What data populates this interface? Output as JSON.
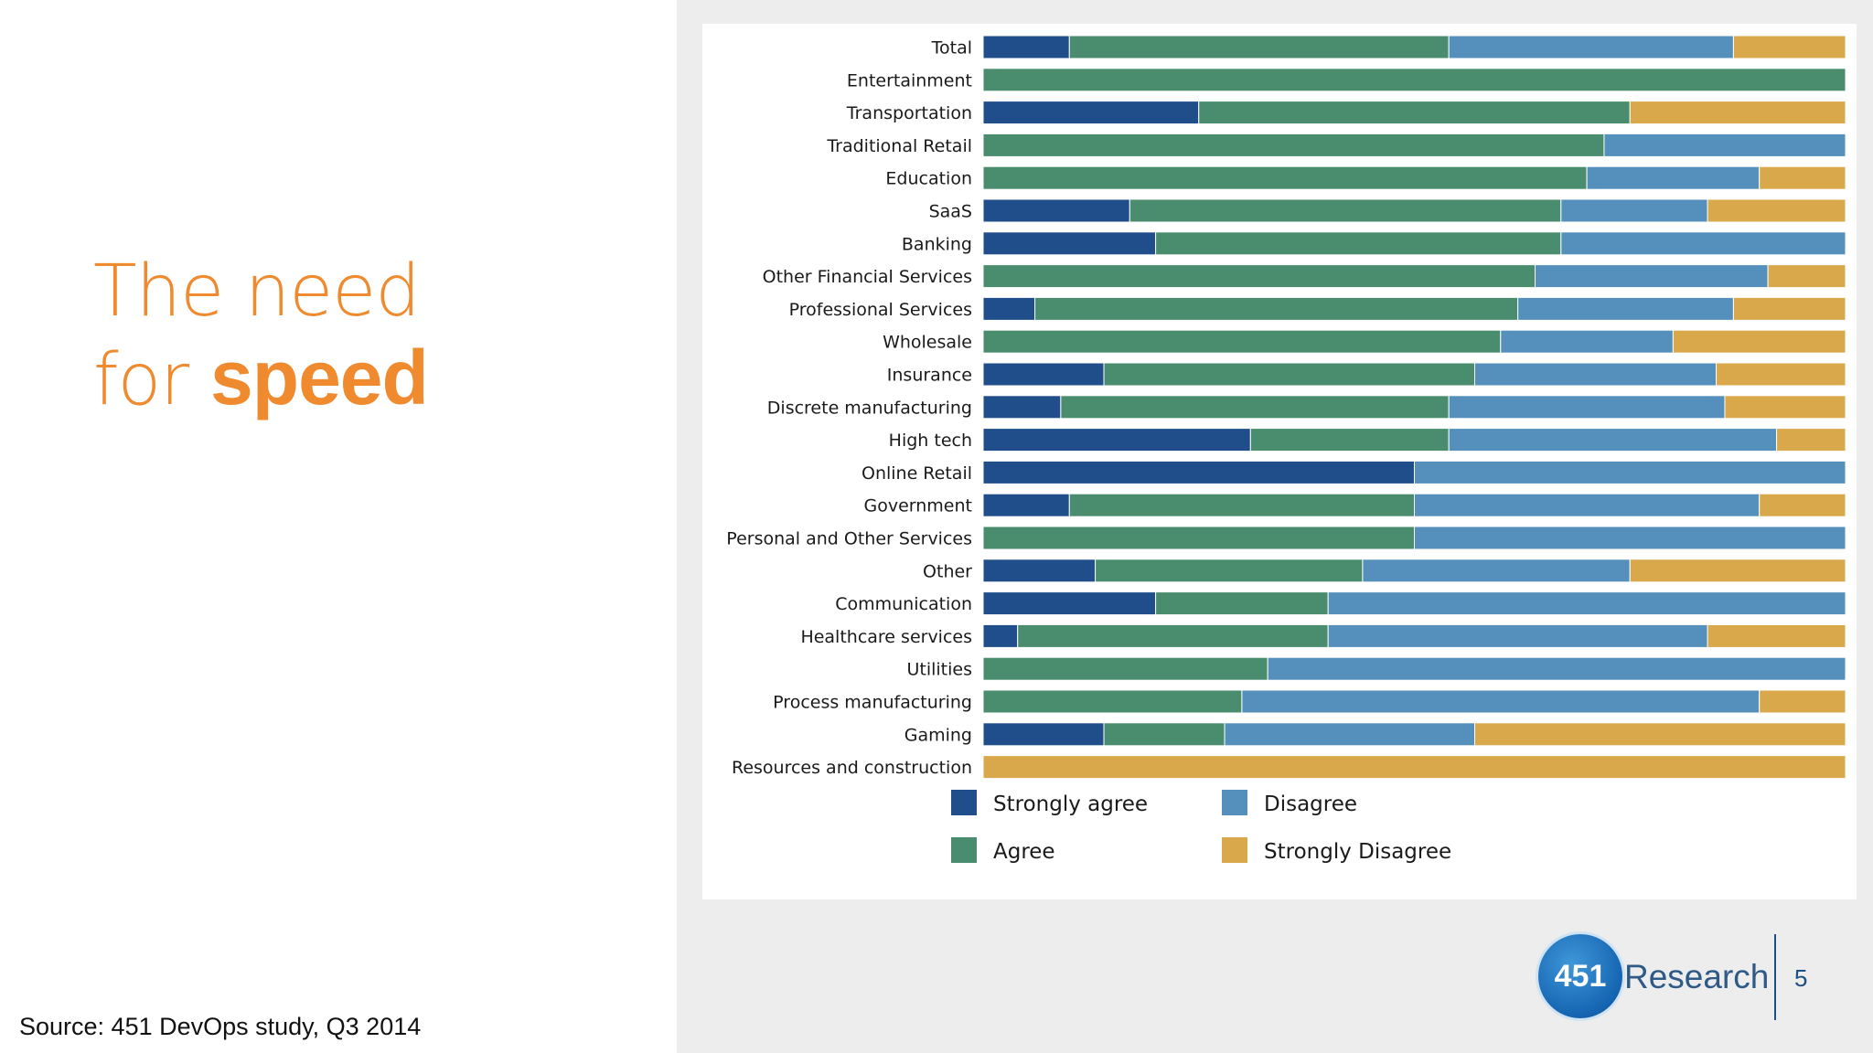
{
  "slide": {
    "title_line1": "The need",
    "title_line2_prefix": "for ",
    "title_line2_bold": "speed",
    "source": "Source: 451 DevOps study, Q3 2014",
    "logo_number": "451",
    "logo_word": "Research",
    "page_number": "5"
  },
  "chart_data": {
    "type": "bar",
    "orientation": "horizontal",
    "stacked": true,
    "normalized_percent": true,
    "categories": [
      "Total",
      "Entertainment",
      "Transportation",
      "Traditional Retail",
      "Education",
      "SaaS",
      "Banking",
      "Other Financial Services",
      "Professional Services",
      "Wholesale",
      "Insurance",
      "Discrete manufacturing",
      "High tech",
      "Online Retail",
      "Government",
      "Personal and Other Services",
      "Other",
      "Communication",
      "Healthcare services",
      "Utilities",
      "Process manufacturing",
      "Gaming",
      "Resources and construction"
    ],
    "series": [
      {
        "name": "Strongly agree",
        "color": "#1f4e8a",
        "values": [
          10,
          0,
          25,
          0,
          0,
          17,
          20,
          0,
          6,
          0,
          14,
          9,
          31,
          50,
          10,
          0,
          13,
          20,
          4,
          0,
          0,
          14,
          0
        ]
      },
      {
        "name": "Agree",
        "color": "#4a8d6e",
        "values": [
          44,
          100,
          50,
          72,
          70,
          50,
          47,
          64,
          56,
          60,
          43,
          45,
          23,
          0,
          40,
          50,
          31,
          20,
          36,
          33,
          30,
          14,
          0
        ]
      },
      {
        "name": "Disagree",
        "color": "#5590bc",
        "values": [
          33,
          0,
          0,
          28,
          20,
          17,
          33,
          27,
          25,
          20,
          28,
          32,
          38,
          50,
          40,
          50,
          31,
          60,
          44,
          67,
          60,
          29,
          0
        ]
      },
      {
        "name": "Strongly Disagree",
        "color": "#d9a84a",
        "values": [
          13,
          0,
          25,
          0,
          10,
          16,
          0,
          9,
          13,
          20,
          15,
          14,
          8,
          0,
          10,
          0,
          25,
          0,
          16,
          0,
          10,
          43,
          100
        ]
      }
    ],
    "xlim": [
      0,
      100
    ],
    "legend_position": "bottom",
    "grid": false
  }
}
